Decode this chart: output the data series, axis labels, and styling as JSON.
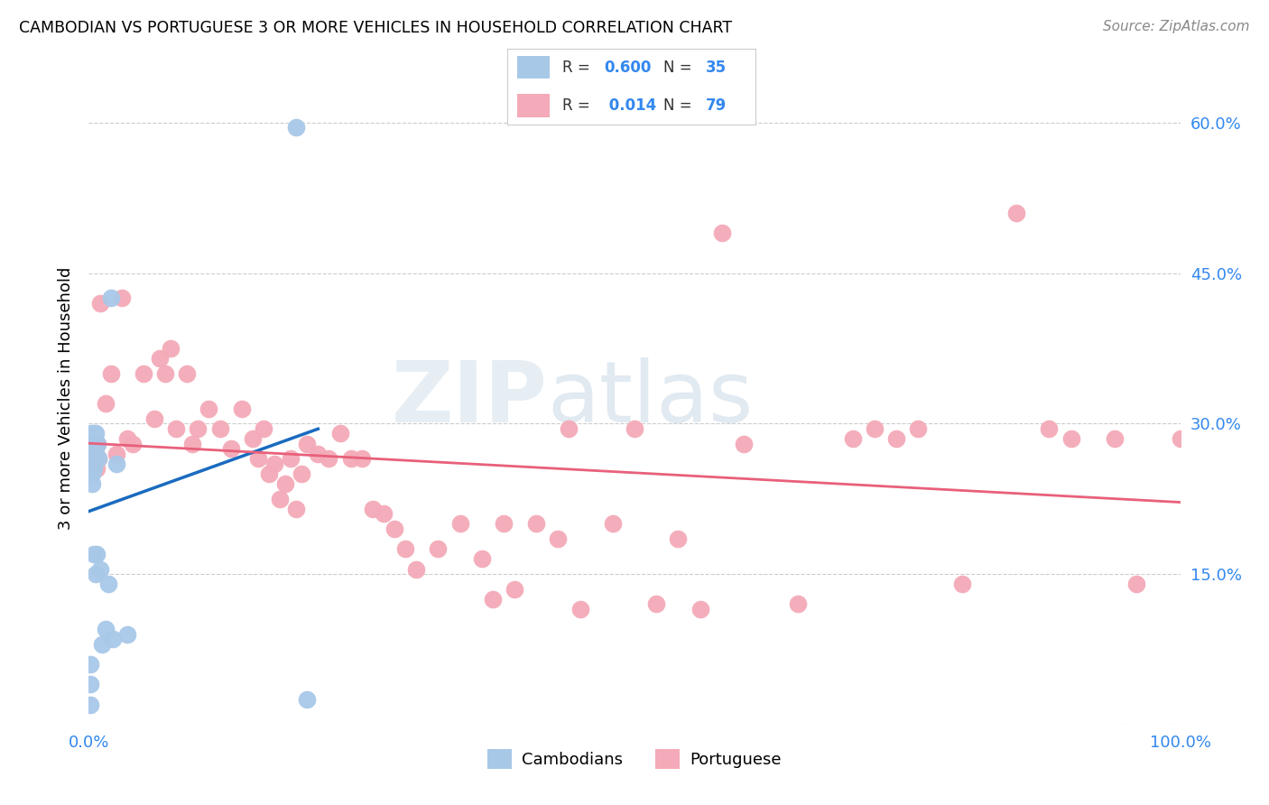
{
  "title": "CAMBODIAN VS PORTUGUESE 3 OR MORE VEHICLES IN HOUSEHOLD CORRELATION CHART",
  "source": "Source: ZipAtlas.com",
  "ylabel": "3 or more Vehicles in Household",
  "xlim": [
    0.0,
    1.0
  ],
  "ylim": [
    0.0,
    0.65
  ],
  "xtick_positions": [
    0.0,
    0.1,
    0.2,
    0.3,
    0.4,
    0.5,
    0.6,
    0.7,
    0.8,
    0.9,
    1.0
  ],
  "xtick_labels": [
    "0.0%",
    "",
    "",
    "",
    "",
    "",
    "",
    "",
    "",
    "",
    "100.0%"
  ],
  "ytick_positions": [
    0.0,
    0.15,
    0.3,
    0.45,
    0.6
  ],
  "ytick_labels_right": [
    "",
    "15.0%",
    "30.0%",
    "45.0%",
    "60.0%"
  ],
  "cambodian_color": "#a8c8e8",
  "cambodian_line_color": "#1a6bbf",
  "portuguese_color": "#f4aab8",
  "portuguese_line_color": "#e8607a",
  "watermark_text": "ZIPatlas",
  "legend_camb_R": "0.600",
  "legend_camb_N": "35",
  "legend_port_R": "0.014",
  "legend_port_N": "79",
  "camb_x": [
    0.001,
    0.001,
    0.001,
    0.002,
    0.002,
    0.002,
    0.002,
    0.002,
    0.003,
    0.003,
    0.003,
    0.003,
    0.003,
    0.004,
    0.004,
    0.004,
    0.005,
    0.005,
    0.005,
    0.006,
    0.006,
    0.006,
    0.007,
    0.008,
    0.009,
    0.01,
    0.012,
    0.015,
    0.018,
    0.02,
    0.022,
    0.025,
    0.035,
    0.19,
    0.2
  ],
  "camb_y": [
    0.02,
    0.04,
    0.06,
    0.255,
    0.265,
    0.27,
    0.275,
    0.29,
    0.24,
    0.25,
    0.26,
    0.27,
    0.28,
    0.265,
    0.275,
    0.285,
    0.17,
    0.255,
    0.29,
    0.15,
    0.27,
    0.29,
    0.17,
    0.28,
    0.265,
    0.155,
    0.08,
    0.095,
    0.14,
    0.425,
    0.085,
    0.26,
    0.09,
    0.595,
    0.025
  ],
  "port_x": [
    0.001,
    0.002,
    0.003,
    0.004,
    0.005,
    0.006,
    0.007,
    0.008,
    0.009,
    0.01,
    0.015,
    0.02,
    0.025,
    0.03,
    0.035,
    0.04,
    0.05,
    0.06,
    0.065,
    0.07,
    0.075,
    0.08,
    0.09,
    0.095,
    0.1,
    0.11,
    0.12,
    0.13,
    0.14,
    0.15,
    0.155,
    0.16,
    0.165,
    0.17,
    0.175,
    0.18,
    0.185,
    0.19,
    0.195,
    0.2,
    0.21,
    0.22,
    0.23,
    0.24,
    0.25,
    0.26,
    0.27,
    0.28,
    0.29,
    0.3,
    0.32,
    0.34,
    0.36,
    0.37,
    0.38,
    0.39,
    0.41,
    0.43,
    0.44,
    0.45,
    0.48,
    0.5,
    0.52,
    0.54,
    0.56,
    0.58,
    0.6,
    0.65,
    0.7,
    0.72,
    0.74,
    0.76,
    0.8,
    0.85,
    0.88,
    0.9,
    0.94,
    0.96,
    1.0
  ],
  "port_y": [
    0.28,
    0.27,
    0.265,
    0.275,
    0.26,
    0.27,
    0.255,
    0.28,
    0.265,
    0.42,
    0.32,
    0.35,
    0.27,
    0.425,
    0.285,
    0.28,
    0.35,
    0.305,
    0.365,
    0.35,
    0.375,
    0.295,
    0.35,
    0.28,
    0.295,
    0.315,
    0.295,
    0.275,
    0.315,
    0.285,
    0.265,
    0.295,
    0.25,
    0.26,
    0.225,
    0.24,
    0.265,
    0.215,
    0.25,
    0.28,
    0.27,
    0.265,
    0.29,
    0.265,
    0.265,
    0.215,
    0.21,
    0.195,
    0.175,
    0.155,
    0.175,
    0.2,
    0.165,
    0.125,
    0.2,
    0.135,
    0.2,
    0.185,
    0.295,
    0.115,
    0.2,
    0.295,
    0.12,
    0.185,
    0.115,
    0.49,
    0.28,
    0.12,
    0.285,
    0.295,
    0.285,
    0.295,
    0.14,
    0.51,
    0.295,
    0.285,
    0.285,
    0.14,
    0.285
  ]
}
